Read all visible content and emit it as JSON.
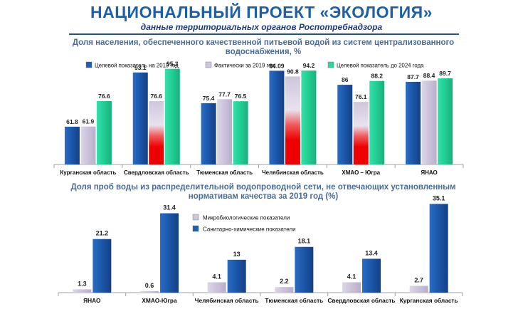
{
  "header": {
    "title": "НАЦИОНАЛЬНЫЙ ПРОЕКТ «ЭКОЛОГИЯ»",
    "subtitle": "данные территориальных органов Роспотребнадзора"
  },
  "chart_data": [
    {
      "type": "bar",
      "title": "Доля населения, обеспеченного качественной питьевой водой из систем централизованного водоснабжения, %",
      "categories": [
        "Курганская область",
        "Свердловская область",
        "Тюменская область",
        "Челябинская область",
        "ХМАО – Югра",
        "ЯНАО"
      ],
      "series": [
        {
          "name": "Целевой показатель на 2019 год",
          "values": [
            61.8,
            93.1,
            75.4,
            94.09,
            86,
            87.7
          ],
          "labels": [
            "61.8",
            "93.1",
            "75.4",
            "94.09",
            "86",
            "87.7"
          ]
        },
        {
          "name": "Фактически за 2019 год",
          "values": [
            61.9,
            76.6,
            77.7,
            90.8,
            76.1,
            88.4
          ],
          "labels": [
            "61.9",
            "76.6",
            "77.7",
            "90.8",
            "76.1",
            "88.4"
          ]
        },
        {
          "name": "Целевой показатель до 2024 года",
          "values": [
            76.6,
            95.2,
            76.5,
            94.2,
            88.2,
            89.7
          ],
          "labels": [
            "76.6",
            "95.2",
            "76.5",
            "94.2",
            "88.2",
            "89.7"
          ]
        }
      ],
      "highlighted_shortfall": [
        "Свердловская область",
        "Челябинская область",
        "ХМАО – Югра"
      ],
      "ylim": [
        40,
        100
      ],
      "legend": "top",
      "colors": {
        "target_2019": "#1f5fb5",
        "actual_2019": "#cfc6dc",
        "target_2024": "#2ed8a0",
        "shortfall": "#ee0000"
      }
    },
    {
      "type": "bar",
      "title": "Доля проб воды из распределительной водопроводной сети, не отвечающих  установленным нормативам качества за 2019 год (%)",
      "categories": [
        "ЯНАО",
        "ХМАО-Югра",
        "Челябинская область",
        "Тюменская область",
        "Свердловская область",
        "Курганская область"
      ],
      "series": [
        {
          "name": "Микробиологические показатели",
          "values": [
            1.3,
            0.6,
            4.1,
            2.2,
            4.1,
            2.7
          ]
        },
        {
          "name": "Санитарно-химические показатели",
          "values": [
            21.2,
            31.4,
            13,
            18.1,
            13.4,
            35.1
          ]
        }
      ],
      "ylim": [
        0,
        36
      ],
      "legend": "top-center",
      "colors": {
        "micro": "#cfc6dc",
        "chem": "#1f5fb5"
      }
    }
  ]
}
